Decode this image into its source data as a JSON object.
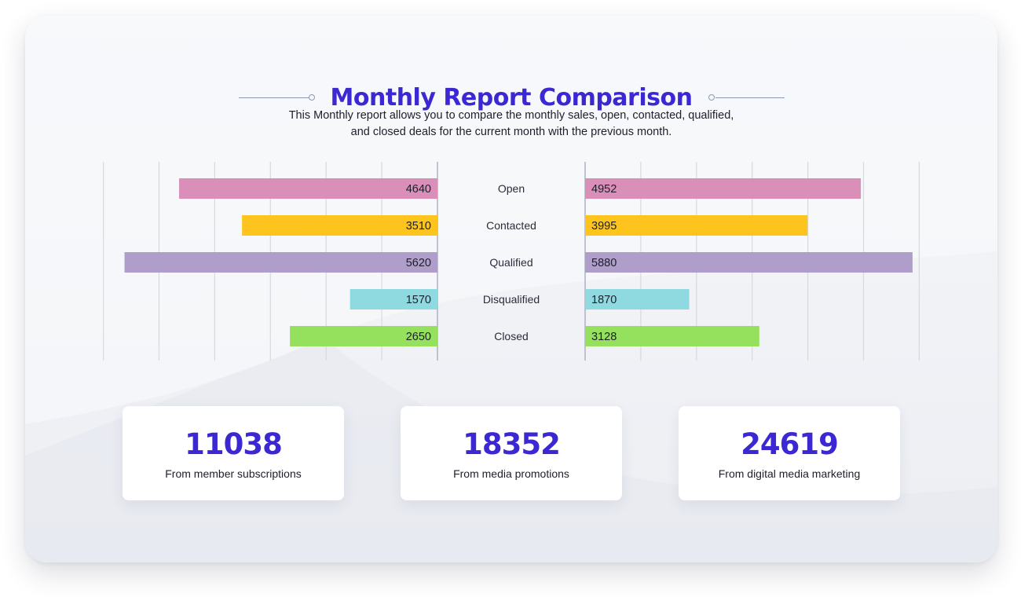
{
  "header": {
    "title": "Monthly Report Comparison",
    "subtitle_line1": "This Monthly report allows you to compare the monthly sales, open, contacted, qualified,",
    "subtitle_line2": "and closed deals for the current month with the previous month."
  },
  "chart_data": {
    "type": "bar",
    "orientation": "horizontal-butterfly",
    "categories": [
      "Open",
      "Contacted",
      "Qualified",
      "Disqualified",
      "Closed"
    ],
    "series": [
      {
        "values": [
          4640,
          3510,
          5620,
          1570,
          2650
        ]
      },
      {
        "values": [
          4952,
          3995,
          5880,
          1870,
          3128
        ]
      }
    ],
    "colors": [
      "#d98fb8",
      "#fcc41c",
      "#af9ec9",
      "#8fdae0",
      "#95e05c"
    ],
    "xlim": [
      0,
      6000
    ],
    "grid": true
  },
  "stats": [
    {
      "value": "11038",
      "label": "From member subscriptions"
    },
    {
      "value": "18352",
      "label": "From media promotions"
    },
    {
      "value": "24619",
      "label": "From digital media marketing"
    }
  ]
}
